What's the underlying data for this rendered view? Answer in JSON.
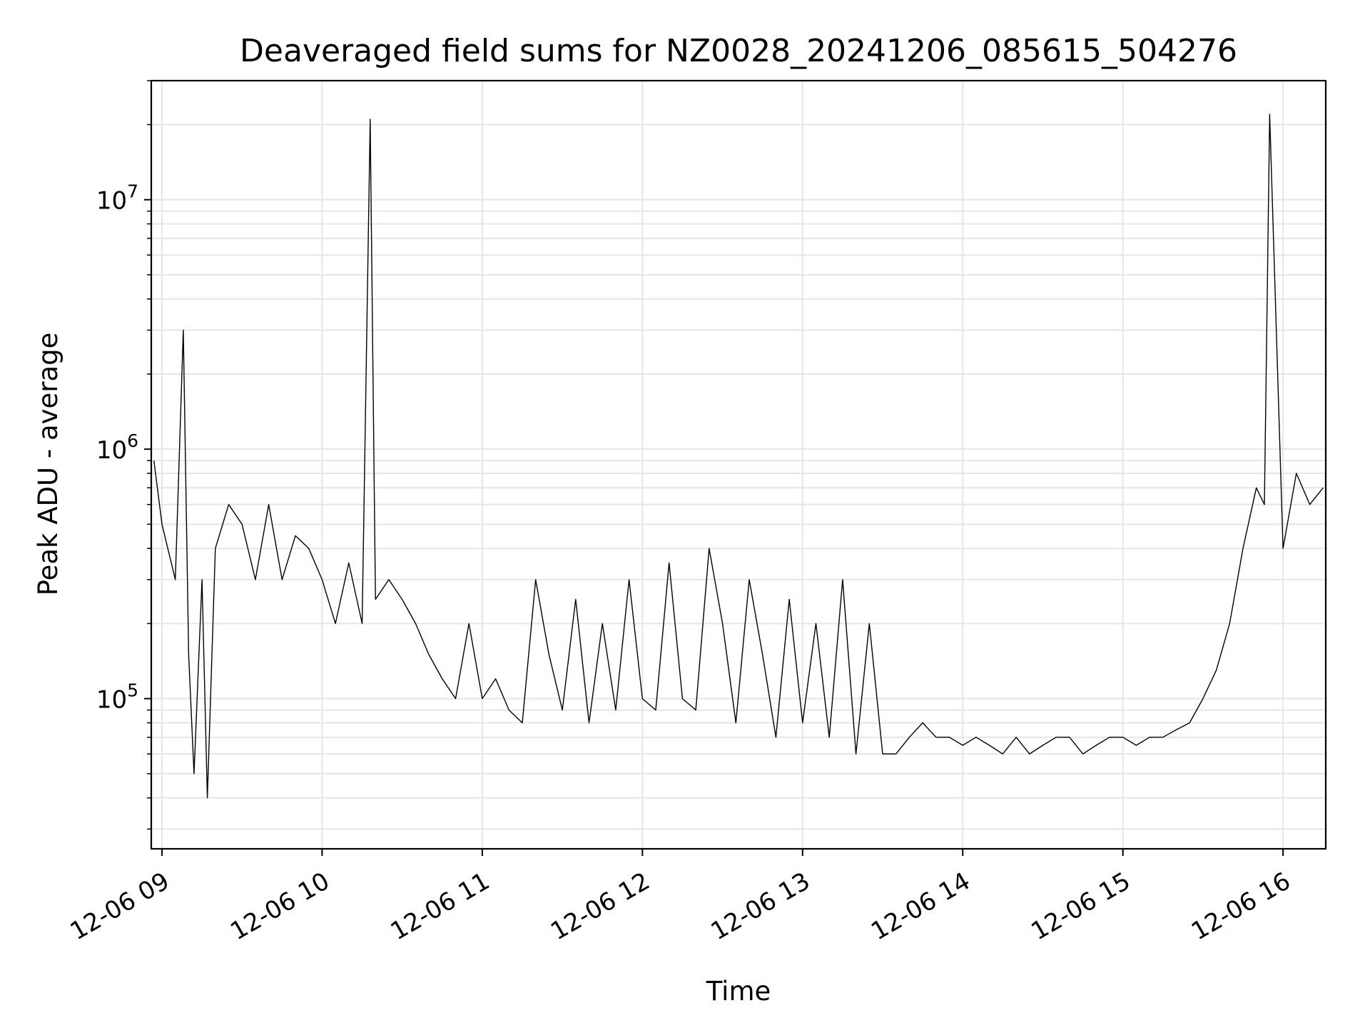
{
  "chart_data": {
    "type": "line",
    "title": "Deaveraged field sums for NZ0028_20241206_085615_504276",
    "xlabel": "Time",
    "ylabel": "Peak ADU - average",
    "yscale": "log",
    "ylim": [
      25000,
      30000000
    ],
    "xlim": [
      "2024-12-06 08:56",
      "2024-12-06 16:16"
    ],
    "grid": true,
    "line_color": "#000000",
    "grid_color": "#e6e6e6",
    "x_ticks": [
      {
        "value": "2024-12-06 09:00",
        "label": "12-06 09"
      },
      {
        "value": "2024-12-06 10:00",
        "label": "12-06 10"
      },
      {
        "value": "2024-12-06 11:00",
        "label": "12-06 11"
      },
      {
        "value": "2024-12-06 12:00",
        "label": "12-06 12"
      },
      {
        "value": "2024-12-06 13:00",
        "label": "12-06 13"
      },
      {
        "value": "2024-12-06 14:00",
        "label": "12-06 14"
      },
      {
        "value": "2024-12-06 15:00",
        "label": "12-06 15"
      },
      {
        "value": "2024-12-06 16:00",
        "label": "12-06 16"
      }
    ],
    "y_ticks": [
      {
        "value": 100000,
        "base": "10",
        "exp": "5"
      },
      {
        "value": 1000000,
        "base": "10",
        "exp": "6"
      },
      {
        "value": 10000000,
        "base": "10",
        "exp": "7"
      }
    ],
    "series": [
      {
        "x": [
          "2024-12-06 08:57",
          "2024-12-06 09:00",
          "2024-12-06 09:05",
          "2024-12-06 09:08",
          "2024-12-06 09:10",
          "2024-12-06 09:12",
          "2024-12-06 09:15",
          "2024-12-06 09:17",
          "2024-12-06 09:20",
          "2024-12-06 09:25",
          "2024-12-06 09:30",
          "2024-12-06 09:35",
          "2024-12-06 09:40",
          "2024-12-06 09:45",
          "2024-12-06 09:50",
          "2024-12-06 09:55",
          "2024-12-06 10:00",
          "2024-12-06 10:05",
          "2024-12-06 10:10",
          "2024-12-06 10:15",
          "2024-12-06 10:18",
          "2024-12-06 10:20",
          "2024-12-06 10:25",
          "2024-12-06 10:30",
          "2024-12-06 10:35",
          "2024-12-06 10:40",
          "2024-12-06 10:45",
          "2024-12-06 10:50",
          "2024-12-06 10:55",
          "2024-12-06 11:00",
          "2024-12-06 11:05",
          "2024-12-06 11:10",
          "2024-12-06 11:15",
          "2024-12-06 11:20",
          "2024-12-06 11:25",
          "2024-12-06 11:30",
          "2024-12-06 11:35",
          "2024-12-06 11:40",
          "2024-12-06 11:45",
          "2024-12-06 11:50",
          "2024-12-06 11:55",
          "2024-12-06 12:00",
          "2024-12-06 12:05",
          "2024-12-06 12:10",
          "2024-12-06 12:15",
          "2024-12-06 12:20",
          "2024-12-06 12:25",
          "2024-12-06 12:30",
          "2024-12-06 12:35",
          "2024-12-06 12:40",
          "2024-12-06 12:45",
          "2024-12-06 12:50",
          "2024-12-06 12:55",
          "2024-12-06 13:00",
          "2024-12-06 13:05",
          "2024-12-06 13:10",
          "2024-12-06 13:15",
          "2024-12-06 13:20",
          "2024-12-06 13:25",
          "2024-12-06 13:30",
          "2024-12-06 13:35",
          "2024-12-06 13:40",
          "2024-12-06 13:45",
          "2024-12-06 13:50",
          "2024-12-06 13:55",
          "2024-12-06 14:00",
          "2024-12-06 14:05",
          "2024-12-06 14:10",
          "2024-12-06 14:15",
          "2024-12-06 14:20",
          "2024-12-06 14:25",
          "2024-12-06 14:30",
          "2024-12-06 14:35",
          "2024-12-06 14:40",
          "2024-12-06 14:45",
          "2024-12-06 14:50",
          "2024-12-06 14:55",
          "2024-12-06 15:00",
          "2024-12-06 15:05",
          "2024-12-06 15:10",
          "2024-12-06 15:15",
          "2024-12-06 15:20",
          "2024-12-06 15:25",
          "2024-12-06 15:30",
          "2024-12-06 15:35",
          "2024-12-06 15:40",
          "2024-12-06 15:45",
          "2024-12-06 15:50",
          "2024-12-06 15:53",
          "2024-12-06 15:55",
          "2024-12-06 16:00",
          "2024-12-06 16:05",
          "2024-12-06 16:10",
          "2024-12-06 16:15"
        ],
        "y": [
          900000,
          500000,
          300000,
          3000000,
          150000,
          50000,
          300000,
          40000,
          400000,
          600000,
          500000,
          300000,
          600000,
          300000,
          450000,
          400000,
          300000,
          200000,
          350000,
          200000,
          21000000,
          250000,
          300000,
          250000,
          200000,
          150000,
          120000,
          100000,
          200000,
          100000,
          120000,
          90000,
          80000,
          300000,
          150000,
          90000,
          250000,
          80000,
          200000,
          90000,
          300000,
          100000,
          90000,
          350000,
          100000,
          90000,
          400000,
          200000,
          80000,
          300000,
          150000,
          70000,
          250000,
          80000,
          200000,
          70000,
          300000,
          60000,
          200000,
          60000,
          60000,
          70000,
          80000,
          70000,
          70000,
          65000,
          70000,
          65000,
          60000,
          70000,
          60000,
          65000,
          70000,
          70000,
          60000,
          65000,
          70000,
          70000,
          65000,
          70000,
          70000,
          75000,
          80000,
          100000,
          130000,
          200000,
          400000,
          700000,
          600000,
          22000000,
          400000,
          800000,
          600000,
          700000
        ]
      }
    ]
  }
}
